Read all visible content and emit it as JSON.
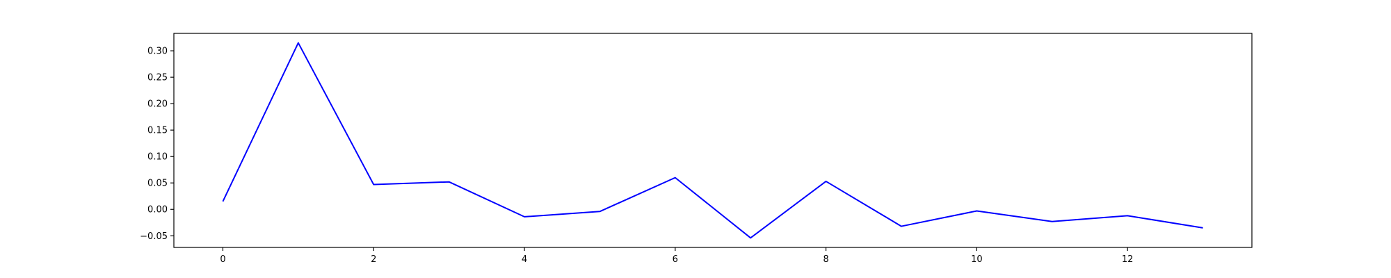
{
  "chart_data": {
    "type": "line",
    "title": "",
    "xlabel": "",
    "ylabel": "",
    "xlim": [
      -0.65,
      13.65
    ],
    "ylim": [
      -0.072,
      0.333
    ],
    "xticks": [
      0,
      2,
      4,
      6,
      8,
      10,
      12
    ],
    "yticks": [
      -0.05,
      0.0,
      0.05,
      0.1,
      0.15,
      0.2,
      0.25,
      0.3
    ],
    "xtick_labels": [
      "0",
      "2",
      "4",
      "6",
      "8",
      "10",
      "12"
    ],
    "ytick_labels": [
      "−0.05",
      "0.00",
      "0.05",
      "0.10",
      "0.15",
      "0.20",
      "0.25",
      "0.30"
    ],
    "grid": false,
    "legend": "none",
    "series": [
      {
        "color": "#0000ff",
        "x": [
          0,
          1,
          2,
          3,
          4,
          5,
          6,
          7,
          8,
          9,
          10,
          11,
          12,
          13
        ],
        "y": [
          0.015,
          0.315,
          0.047,
          0.052,
          -0.014,
          -0.004,
          0.06,
          -0.054,
          0.053,
          -0.032,
          -0.003,
          -0.023,
          -0.012,
          -0.035
        ]
      }
    ]
  }
}
